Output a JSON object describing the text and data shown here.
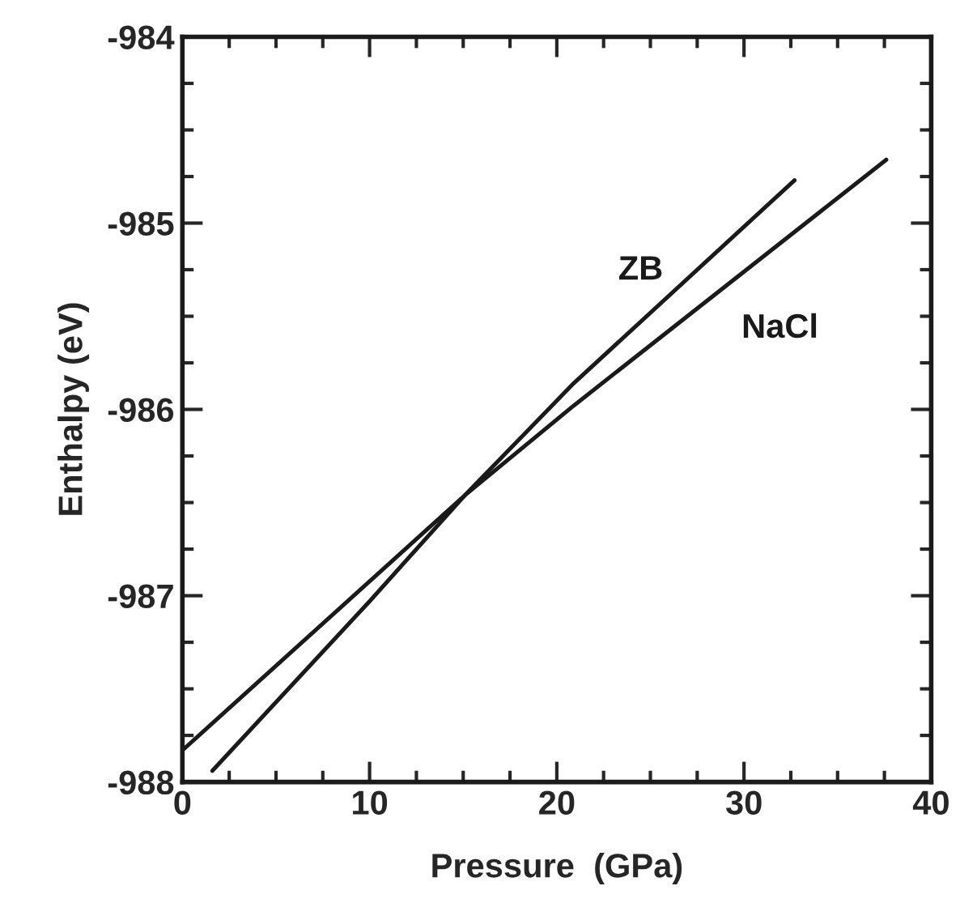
{
  "chart_data": {
    "type": "line",
    "xlabel": "Pressure  (GPa)",
    "ylabel": "Enthalpy (eV)",
    "xlim": [
      0,
      40
    ],
    "xticks": [
      0,
      10,
      20,
      30,
      40
    ],
    "ylim": [
      -988,
      -984
    ],
    "yticks": [
      -988,
      -987,
      -986,
      -985,
      -984
    ],
    "grid": false,
    "legend": false,
    "marker": "none",
    "line_style": "solid",
    "series": [
      {
        "name": "ZB",
        "color": "#1a1a1a",
        "x": [
          1.6,
          10.0,
          15.1,
          20.9,
          32.7
        ],
        "values": [
          -987.94,
          -987.03,
          -986.46,
          -985.86,
          -984.77
        ]
      },
      {
        "name": "NaCl",
        "color": "#1a1a1a",
        "x": [
          0,
          15.1,
          20.9,
          37.6
        ],
        "values": [
          -987.83,
          -986.46,
          -985.98,
          -984.66
        ]
      }
    ]
  }
}
